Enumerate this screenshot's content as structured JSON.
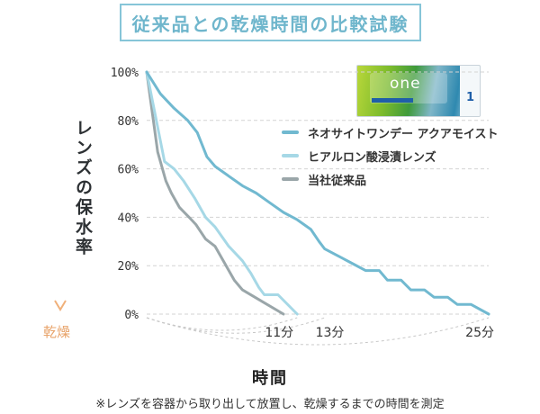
{
  "title": "従来品との乾燥時間の比較試験",
  "y_axis_label": "レンズの保水率",
  "dry_label": "乾燥",
  "x_axis_label": "時間",
  "footnote": "※レンズを容器から取り出して放置し、乾燥するまでの時間を測定",
  "product_image": {
    "brand_text": "one",
    "number": "1"
  },
  "colors": {
    "title": "#6fb6cc",
    "axis_arrow_top": "#7fb2c9",
    "axis_arrow_bottom": "#f0b07a",
    "dry_label": "#e8a36a"
  },
  "chart_data": {
    "type": "line",
    "title": "従来品との乾燥時間の比較試験",
    "ylabel": "レンズの保水率",
    "xlabel": "時間",
    "y_ticks": [
      "100%",
      "80%",
      "60%",
      "40%",
      "20%",
      "0%"
    ],
    "y_tick_values": [
      100,
      80,
      60,
      40,
      20,
      0
    ],
    "ylim": [
      0,
      100
    ],
    "xlim": [
      0,
      25
    ],
    "grid": "horizontal dashed",
    "legend_position": "right",
    "x_ticks": [
      {
        "label": "11分",
        "value": 11
      },
      {
        "label": "13分",
        "value": 13
      },
      {
        "label": "25分",
        "value": 25
      }
    ],
    "series": [
      {
        "name": "ネオサイトワンデー アクアモイスト",
        "color": "#71b9d0",
        "points": [
          [
            0,
            100
          ],
          [
            1,
            91
          ],
          [
            2,
            85
          ],
          [
            3,
            80
          ],
          [
            3.7,
            75
          ],
          [
            4.4,
            65
          ],
          [
            5,
            61
          ],
          [
            6,
            57
          ],
          [
            7,
            53
          ],
          [
            8,
            50
          ],
          [
            9,
            46
          ],
          [
            10,
            42
          ],
          [
            11,
            39
          ],
          [
            12,
            35
          ],
          [
            12.6,
            30
          ],
          [
            13,
            27
          ],
          [
            14,
            24
          ],
          [
            15,
            21
          ],
          [
            16,
            18
          ],
          [
            17,
            18
          ],
          [
            17.6,
            14
          ],
          [
            18.6,
            14
          ],
          [
            19.3,
            10
          ],
          [
            20.3,
            10
          ],
          [
            21,
            7
          ],
          [
            22,
            7
          ],
          [
            22.7,
            4
          ],
          [
            23.7,
            4
          ],
          [
            25,
            0
          ]
        ]
      },
      {
        "name": "ヒアルロン酸浸漬レンズ",
        "color": "#a6d8e6",
        "points": [
          [
            0,
            100
          ],
          [
            1.3,
            63
          ],
          [
            2,
            60
          ],
          [
            2.7,
            55
          ],
          [
            3.5,
            48
          ],
          [
            4.3,
            40
          ],
          [
            5,
            36
          ],
          [
            6,
            28
          ],
          [
            7,
            22
          ],
          [
            7.6,
            17
          ],
          [
            8.2,
            11
          ],
          [
            8.6,
            8
          ],
          [
            9.6,
            8
          ],
          [
            11,
            0
          ]
        ]
      },
      {
        "name": "当社従来品",
        "color": "#9aa6a9",
        "points": [
          [
            0,
            100
          ],
          [
            0.8,
            67
          ],
          [
            1.4,
            55
          ],
          [
            1.8,
            50
          ],
          [
            2.4,
            44
          ],
          [
            3.1,
            40
          ],
          [
            3.6,
            37
          ],
          [
            4.3,
            31
          ],
          [
            5,
            28
          ],
          [
            5.6,
            22
          ],
          [
            6.4,
            14
          ],
          [
            7,
            10
          ],
          [
            8.5,
            5
          ],
          [
            10,
            0
          ]
        ]
      }
    ]
  }
}
